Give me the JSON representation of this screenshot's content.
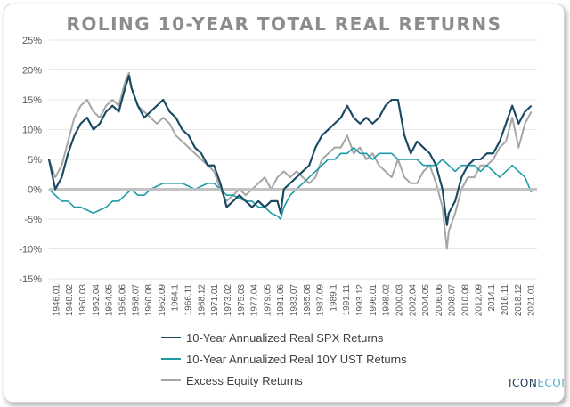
{
  "chart_data": {
    "type": "line",
    "title": "ROLING 10-YEAR TOTAL REAL RETURNS",
    "ylim": [
      -15,
      25
    ],
    "yticks": [
      -15,
      -10,
      -5,
      0,
      5,
      10,
      15,
      20,
      25
    ],
    "ytick_labels": [
      "-15%",
      "-10%",
      "-5%",
      "0%",
      "5%",
      "10%",
      "15%",
      "20%",
      "25%"
    ],
    "x_range": [
      1946.0,
      2022.9
    ],
    "xtick_labels": [
      "1946.01",
      "1948.02",
      "1950.03",
      "1952.04",
      "1954.05",
      "1956.06",
      "1958.07",
      "1960.08",
      "1962.09",
      "1964.1",
      "1966.11",
      "1968.12",
      "1971.01",
      "1973.02",
      "1975.03",
      "1977.04",
      "1979.05",
      "1981.06",
      "1983.07",
      "1985.08",
      "1987.09",
      "1989.1",
      "1991.11",
      "1993.12",
      "1996.01",
      "1998.02",
      "2000.03",
      "2002.04",
      "2004.05",
      "2006.06",
      "2008.07",
      "2010.08",
      "2012.09",
      "2014.1",
      "2016.11",
      "2018.12",
      "2021.01"
    ],
    "zero_line_color": "#bfbfbf",
    "series": [
      {
        "name": "10-Year Annualized Real SPX Returns",
        "color": "#1a4a63",
        "x": [
          1946.0,
          1947.0,
          1948.0,
          1949.0,
          1950.0,
          1951.0,
          1952.0,
          1953.0,
          1954.0,
          1955.0,
          1956.0,
          1957.0,
          1958.0,
          1958.6,
          1959.0,
          1960.0,
          1961.0,
          1962.0,
          1963.0,
          1964.0,
          1965.0,
          1966.0,
          1967.0,
          1968.0,
          1969.0,
          1970.0,
          1971.0,
          1972.0,
          1973.0,
          1974.0,
          1975.0,
          1976.0,
          1977.0,
          1978.0,
          1979.0,
          1980.0,
          1981.0,
          1982.0,
          1982.5,
          1983.0,
          1984.0,
          1985.0,
          1986.0,
          1987.0,
          1988.0,
          1989.0,
          1990.0,
          1991.0,
          1992.0,
          1993.0,
          1994.0,
          1995.0,
          1996.0,
          1997.0,
          1998.0,
          1999.0,
          2000.0,
          2001.0,
          2002.0,
          2003.0,
          2004.0,
          2005.0,
          2006.0,
          2007.0,
          2008.0,
          2008.7,
          2009.0,
          2010.0,
          2011.0,
          2012.0,
          2013.0,
          2014.0,
          2015.0,
          2016.0,
          2017.0,
          2018.0,
          2019.0,
          2020.0,
          2021.0,
          2022.0
        ],
        "values": [
          5,
          0,
          2,
          6,
          9,
          11,
          12,
          10,
          11,
          13,
          14,
          13,
          17,
          19,
          17,
          14,
          12,
          13,
          14,
          15,
          13,
          12,
          10,
          9,
          7,
          6,
          4,
          4,
          1,
          -3,
          -2,
          -1,
          -2,
          -3,
          -2,
          -3,
          -2,
          -2,
          -4,
          0,
          1,
          2,
          3,
          4,
          7,
          9,
          10,
          11,
          12,
          14,
          12,
          11,
          12,
          11,
          12,
          14,
          15,
          15,
          9,
          6,
          8,
          7,
          6,
          4,
          0,
          -6,
          -4,
          -2,
          2,
          4,
          5,
          5,
          6,
          6,
          8,
          11,
          14,
          11,
          13,
          14
        ]
      },
      {
        "name": "10-Year Annualized Real 10Y UST Returns",
        "color": "#1d9aa8",
        "x": [
          1946.0,
          1947.0,
          1948.0,
          1949.0,
          1950.0,
          1951.0,
          1952.0,
          1953.0,
          1954.0,
          1955.0,
          1956.0,
          1957.0,
          1958.0,
          1959.0,
          1960.0,
          1961.0,
          1962.0,
          1963.0,
          1964.0,
          1965.0,
          1966.0,
          1967.0,
          1968.0,
          1969.0,
          1970.0,
          1971.0,
          1972.0,
          1973.0,
          1974.0,
          1975.0,
          1976.0,
          1977.0,
          1978.0,
          1979.0,
          1980.0,
          1981.0,
          1982.0,
          1982.5,
          1983.0,
          1984.0,
          1985.0,
          1986.0,
          1987.0,
          1988.0,
          1989.0,
          1990.0,
          1991.0,
          1992.0,
          1993.0,
          1994.0,
          1995.0,
          1996.0,
          1997.0,
          1998.0,
          1999.0,
          2000.0,
          2001.0,
          2002.0,
          2003.0,
          2004.0,
          2005.0,
          2006.0,
          2007.0,
          2008.0,
          2009.0,
          2010.0,
          2011.0,
          2012.0,
          2013.0,
          2014.0,
          2015.0,
          2016.0,
          2017.0,
          2018.0,
          2019.0,
          2020.0,
          2021.0,
          2022.0
        ],
        "values": [
          0,
          -1,
          -2,
          -2,
          -3,
          -3,
          -3.5,
          -4,
          -3.5,
          -3,
          -2,
          -2,
          -1,
          0,
          -1,
          -1,
          0,
          0.5,
          1,
          1,
          1,
          1,
          0.5,
          0,
          0.5,
          1,
          1,
          0,
          -1,
          -1,
          -1.5,
          -2,
          -2,
          -3,
          -3,
          -4,
          -4.5,
          -5,
          -3,
          -1,
          0,
          1,
          2,
          3,
          4,
          5,
          5,
          6,
          6,
          7,
          6,
          6,
          5,
          6,
          6,
          6,
          5,
          5,
          5,
          5,
          4,
          4,
          4,
          5,
          4,
          3,
          4,
          4,
          4,
          3,
          4,
          3,
          2,
          3,
          4,
          3,
          2,
          -0.5
        ]
      },
      {
        "name": "Excess Equity Returns",
        "color": "#a6a6a6",
        "x": [
          1946.0,
          1947.0,
          1948.0,
          1949.0,
          1950.0,
          1951.0,
          1952.0,
          1953.0,
          1954.0,
          1955.0,
          1956.0,
          1957.0,
          1958.0,
          1958.6,
          1959.0,
          1960.0,
          1961.0,
          1962.0,
          1963.0,
          1964.0,
          1965.0,
          1966.0,
          1967.0,
          1968.0,
          1969.0,
          1970.0,
          1971.0,
          1972.0,
          1973.0,
          1974.0,
          1975.0,
          1976.0,
          1977.0,
          1978.0,
          1979.0,
          1980.0,
          1981.0,
          1982.0,
          1983.0,
          1984.0,
          1985.0,
          1986.0,
          1987.0,
          1988.0,
          1989.0,
          1990.0,
          1991.0,
          1992.0,
          1993.0,
          1994.0,
          1995.0,
          1996.0,
          1997.0,
          1998.0,
          1999.0,
          2000.0,
          2001.0,
          2002.0,
          2003.0,
          2004.0,
          2005.0,
          2006.0,
          2007.0,
          2008.0,
          2008.7,
          2009.0,
          2010.0,
          2011.0,
          2012.0,
          2013.0,
          2014.0,
          2015.0,
          2016.0,
          2017.0,
          2018.0,
          2019.0,
          2020.0,
          2021.0,
          2022.0
        ],
        "values": [
          5,
          2,
          4,
          8,
          12,
          14,
          15,
          13,
          12,
          14,
          15,
          14,
          18,
          19.5,
          17,
          14,
          13,
          12,
          11,
          12,
          11,
          9,
          8,
          7,
          6,
          5,
          4,
          3,
          0,
          -2,
          -1,
          0,
          -1,
          0,
          1,
          2,
          0,
          2,
          3,
          2,
          3,
          2,
          1,
          2,
          5,
          6,
          7,
          7,
          9,
          6,
          7,
          5,
          6,
          4,
          3,
          2,
          5,
          2,
          1,
          1,
          3,
          4,
          1,
          -3,
          -10,
          -7,
          -4,
          0,
          2,
          2,
          4,
          4,
          5,
          7,
          8,
          12,
          7,
          11,
          13
        ]
      }
    ]
  },
  "logo": {
    "part1": "ICON",
    "part2": "ECON"
  }
}
